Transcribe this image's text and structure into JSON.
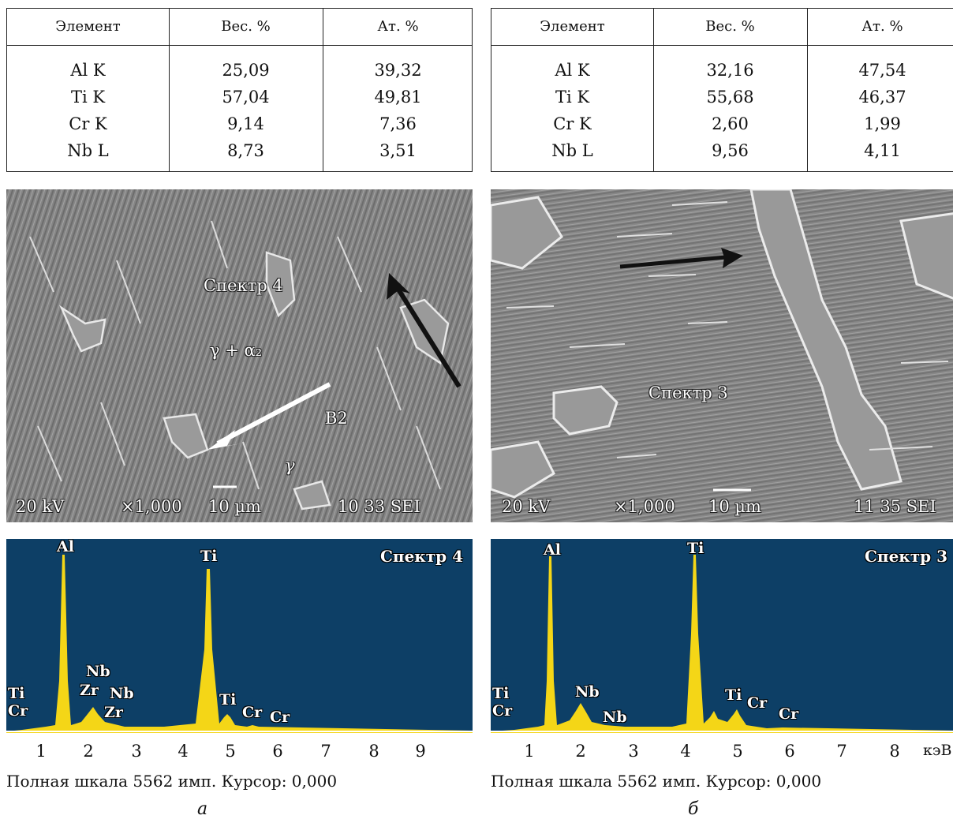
{
  "panels": [
    {
      "id": "a",
      "table": {
        "headers": [
          "Элемент",
          "Вес. %",
          "Ат. %"
        ],
        "rows": [
          [
            "Al K",
            "25,09",
            "39,32"
          ],
          [
            "Ti K",
            "57,04",
            "49,81"
          ],
          [
            "Cr K",
            "9,14",
            "7,36"
          ],
          [
            "Nb L",
            "8,73",
            "3,51"
          ]
        ]
      },
      "micrograph": {
        "labels": {
          "spectrum": "Спектр 4",
          "phase_mix": "γ + α₂",
          "b2": "B2",
          "gamma": "γ"
        },
        "footer": {
          "kv": "20 kV",
          "mag": "×1,000",
          "scale": "10 µm",
          "id": "10 33 SEI"
        }
      },
      "spectrum": {
        "title": "Спектр 4",
        "peaks": {
          "al": "Al",
          "ti": "Ti",
          "ti_small": "Ti",
          "cr_a": "Cr",
          "cr_b": "Cr",
          "ti_left": "Ti",
          "cr_left": "Cr",
          "nb": "Nb",
          "zr": "Zr",
          "nb2": "Nb",
          "zr2": "Zr"
        },
        "ticks": [
          "1",
          "2",
          "3",
          "4",
          "5",
          "6",
          "7",
          "8",
          "9"
        ],
        "unit": ""
      },
      "fullscale": "Полная шкала 5562 имп. Курсор: 0,000",
      "caption": "а"
    },
    {
      "id": "b",
      "table": {
        "headers": [
          "Элемент",
          "Вес. %",
          "Ат. %"
        ],
        "rows": [
          [
            "Al K",
            "32,16",
            "47,54"
          ],
          [
            "Ti K",
            "55,68",
            "46,37"
          ],
          [
            "Cr K",
            "2,60",
            "1,99"
          ],
          [
            "Nb L",
            "9,56",
            "4,11"
          ]
        ]
      },
      "micrograph": {
        "labels": {
          "spectrum": "Спектр 3"
        },
        "footer": {
          "kv": "20 kV",
          "mag": "×1,000",
          "scale": "10 µm",
          "id": "11 35 SEI"
        }
      },
      "spectrum": {
        "title": "Спектр 3",
        "peaks": {
          "al": "Al",
          "ti": "Ti",
          "ti_small": "Ti",
          "cr_a": "Cr",
          "cr_b": "Cr",
          "ti_left": "Ti",
          "cr_left": "Cr",
          "nb": "Nb",
          "nb2": "Nb"
        },
        "ticks": [
          "1",
          "2",
          "3",
          "4",
          "5",
          "6",
          "7",
          "8"
        ],
        "unit": "кэВ"
      },
      "fullscale": "Полная шкала 5562 имп. Курсор: 0,000",
      "caption": "б"
    }
  ],
  "colors": {
    "spectrum_bg": "#0d3f66",
    "spectrum_fill": "#f4d617",
    "sem_base": "#8a8a8a"
  }
}
